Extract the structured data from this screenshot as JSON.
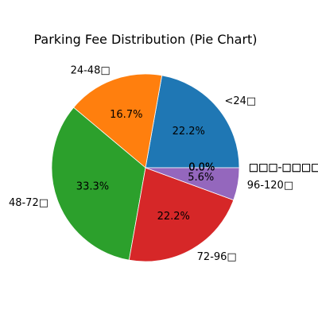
{
  "chart_data": {
    "type": "pie",
    "title": "Parking Fee Distribution (Pie Chart)",
    "start_angle_deg": 0,
    "direction": "counterclockwise",
    "slices": [
      {
        "label": "<24□",
        "value": 22.2,
        "pct_label": "22.2%",
        "color": "#1f77b4"
      },
      {
        "label": "24-48□",
        "value": 16.7,
        "pct_label": "16.7%",
        "color": "#ff7f0e"
      },
      {
        "label": "48-72□",
        "value": 33.3,
        "pct_label": "33.3%",
        "color": "#2ca02c"
      },
      {
        "label": "72-96□",
        "value": 22.2,
        "pct_label": "22.2%",
        "color": "#d62728"
      },
      {
        "label": "96-120□",
        "value": 5.6,
        "pct_label": "5.6%",
        "color": "#9467bd"
      },
      {
        "label": "□□□-□□□□□",
        "value": 0.0,
        "pct_label": "0.0%",
        "color": "#8c564b"
      },
      {
        "label": "□□□-□□□□□",
        "value": 0.0,
        "pct_label": "0.0%",
        "color": "#e377c2"
      },
      {
        "label": "□□□-□□□□□",
        "value": 0.0,
        "pct_label": "0.0%",
        "color": "#7f7f7f"
      },
      {
        "label": "□□□-□□□□□□",
        "value": 0.0,
        "pct_label": "0.0%",
        "color": "#bcbd22"
      }
    ]
  }
}
